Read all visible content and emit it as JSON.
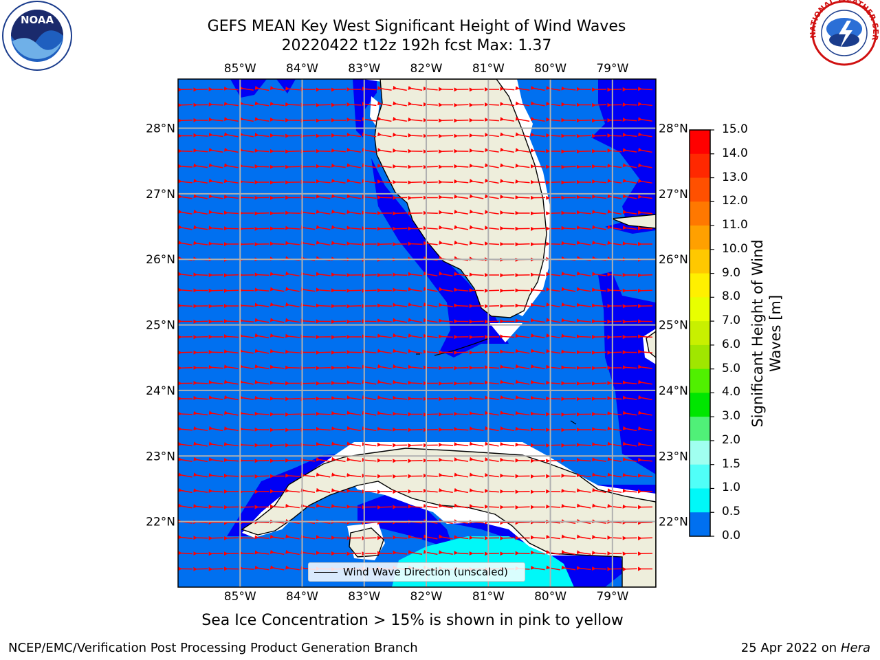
{
  "header": {
    "title_line1": "GEFS MEAN Key West Significant Height of Wind Waves",
    "title_line2": "20220422 t12z 192h fcst   Max: 1.37"
  },
  "logos": {
    "left": "NOAA",
    "left_ring": "NATIONAL OCEANIC AND ATMOSPHERIC ADMINISTRATION · U.S. DEPARTMENT OF COMMERCE",
    "right": "NATIONAL WEATHER SERVICE"
  },
  "map": {
    "lon_labels": [
      "85°W",
      "84°W",
      "83°W",
      "82°W",
      "81°W",
      "80°W",
      "79°W"
    ],
    "lat_labels": [
      "28°N",
      "27°N",
      "26°N",
      "25°N",
      "24°N",
      "23°N",
      "22°N"
    ],
    "lon_range": [
      -86.0,
      -78.3
    ],
    "lat_range": [
      21.0,
      28.75
    ],
    "colors": {
      "deep": "#0000f5",
      "mid": "#0070f0",
      "cyan": "#00f8f8",
      "land": "#eeeedc",
      "arrow": "#ff0000"
    },
    "legend_label": "Wind Wave Direction (unscaled)"
  },
  "colorbar": {
    "title": "Significant Height of Wind Waves [m]",
    "title_line1": "Significant Height of Wind",
    "title_line2": "Waves [m]",
    "ticks": [
      "15.0",
      "14.0",
      "13.0",
      "12.0",
      "11.0",
      "10.0",
      "9.0",
      "8.0",
      "7.0",
      "6.0",
      "5.0",
      "4.0",
      "3.0",
      "2.0",
      "1.5",
      "1.0",
      "0.5",
      "0.0"
    ],
    "colors": [
      "#ff0000",
      "#ff2800",
      "#ff5000",
      "#ff7800",
      "#ffa000",
      "#ffc800",
      "#fff000",
      "#e8ff00",
      "#c8f000",
      "#a0e600",
      "#50f000",
      "#00e600",
      "#50f078",
      "#a0fff0",
      "#50fff8",
      "#00f8f8",
      "#0070f0",
      "#0000f5"
    ]
  },
  "footer": {
    "note": "Sea Ice Concentration > 15% is shown in pink to yellow",
    "agency": "NCEP/EMC/Verification Post Processing Product Generation Branch",
    "date": "25 Apr 2022 on",
    "machine": "Hera"
  }
}
